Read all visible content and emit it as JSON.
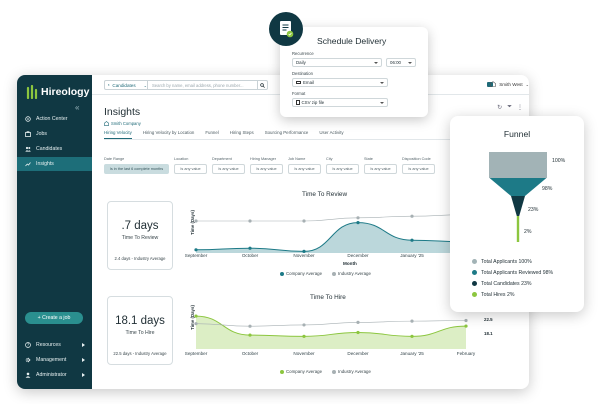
{
  "app": {
    "logo_text": "Hireology",
    "nav": [
      {
        "label": "Action Center",
        "icon": "home-icon"
      },
      {
        "label": "Jobs",
        "icon": "briefcase-icon"
      },
      {
        "label": "Candidates",
        "icon": "people-icon"
      },
      {
        "label": "Insights",
        "icon": "trend-icon",
        "active": true
      }
    ],
    "create_job": "+ Create a job",
    "bottom_nav": [
      {
        "label": "Resources",
        "icon": "question-icon"
      },
      {
        "label": "Management",
        "icon": "gear-icon"
      },
      {
        "label": "Administrator",
        "icon": "person-icon"
      }
    ],
    "accent": "#1d6e79",
    "sidebar_bg": "#103843"
  },
  "topbar": {
    "candidates_label": "Candidates",
    "search_placeholder": "Search by name, email address, phone number...",
    "company_name": "Smith West"
  },
  "page": {
    "title": "Insights",
    "company_tag": "Smith Company",
    "tabs": [
      "Hiring Velocity",
      "Hiring Velocity by Location",
      "Funnel",
      "Hiring Steps",
      "Sourcing Performance",
      "User Activity"
    ],
    "active_tab": "Hiring Velocity"
  },
  "filters": [
    {
      "label": "Date Range",
      "value": "Is in the last 6 complete months",
      "wide": true
    },
    {
      "label": "Location",
      "value": "Is any value"
    },
    {
      "label": "Department",
      "value": "Is any value"
    },
    {
      "label": "Hiring Manager",
      "value": "Is any value"
    },
    {
      "label": "Job Name",
      "value": "Is any value"
    },
    {
      "label": "City",
      "value": "Is any value"
    },
    {
      "label": "State",
      "value": "Is any value"
    },
    {
      "label": "Disposition Code",
      "value": "Is any value"
    }
  ],
  "kpis": [
    {
      "value": ".7 days",
      "label": "Time To Review",
      "avg": "2.4 days - Industry Average"
    },
    {
      "value": "18.1 days",
      "label": "Time To Hire",
      "avg": "22.5 days - Industry Average"
    }
  ],
  "chart_data": [
    {
      "type": "area",
      "title": "Time To Review",
      "ylabel": "Time (Days)",
      "xlabel": "Month",
      "categories": [
        "September",
        "October",
        "November",
        "December",
        "January '25",
        "February"
      ],
      "series": [
        {
          "name": "Company Average",
          "values": [
            0.2,
            0.3,
            0.1,
            1.9,
            0.8,
            0.7
          ],
          "color": "#1d7a87"
        },
        {
          "name": "Industry Average",
          "values": [
            2.0,
            2.0,
            2.0,
            2.2,
            2.3,
            2.4
          ],
          "color": "#a7b0b3"
        }
      ],
      "ylim": [
        0,
        3
      ]
    },
    {
      "type": "area",
      "title": "Time To Hire",
      "ylabel": "Time (Days)",
      "xlabel": "Month",
      "categories": [
        "September",
        "October",
        "November",
        "December",
        "January '25",
        "February"
      ],
      "series": [
        {
          "name": "Company Average",
          "values": [
            26,
            11,
            10,
            13,
            10,
            18.1
          ],
          "color": "#8cc63f"
        },
        {
          "name": "Industry Average",
          "values": [
            20,
            18,
            19,
            21,
            22,
            22.5
          ],
          "color": "#a7b0b3"
        }
      ],
      "data_labels": [
        "22.5",
        "18.1"
      ],
      "ylim": [
        0,
        30
      ]
    },
    {
      "type": "funnel",
      "title": "Funnel",
      "categories": [
        "Total Applicants",
        "Total Applicants Reviewed",
        "Total Candidates",
        "Total Hires"
      ],
      "values": [
        100,
        98,
        23,
        2
      ],
      "labels": [
        "100%",
        "98%",
        "23%",
        "2%"
      ],
      "legend": [
        "Total Applicants 100%",
        "Total Applicants Reviewed 98%",
        "Total Candidates 23%",
        "Total Hires 2%"
      ],
      "colors": [
        "#a2b3b6",
        "#1d7a87",
        "#103843",
        "#8cc63f"
      ]
    }
  ],
  "schedule": {
    "title": "Schedule Delivery",
    "recurrence_label": "Recurrence",
    "recurrence_value": "Daily",
    "time_value": "06:00",
    "destination_label": "Destination",
    "destination_value": "Email",
    "format_label": "Format",
    "format_value": "CSV zip file"
  }
}
